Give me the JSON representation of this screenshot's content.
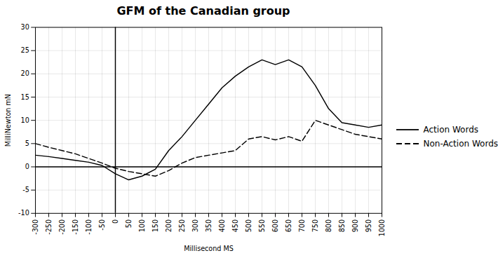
{
  "chart_data": {
    "type": "line",
    "title": "GFM of the Canadian group",
    "xlabel": "Millisecond MS",
    "ylabel": "MilliNewton mN",
    "x": [
      -300,
      -250,
      -200,
      -150,
      -100,
      -50,
      0,
      50,
      100,
      150,
      200,
      250,
      300,
      350,
      400,
      450,
      500,
      550,
      600,
      650,
      700,
      750,
      800,
      850,
      900,
      950,
      1000
    ],
    "series": [
      {
        "name": "Action Words",
        "color": "#000000",
        "line_style": "solid",
        "values": [
          2.5,
          2.2,
          1.8,
          1.4,
          1.0,
          0.3,
          -1.5,
          -2.8,
          -2.0,
          -0.5,
          3.5,
          6.5,
          10.0,
          13.5,
          17.0,
          19.5,
          21.5,
          23.0,
          22.0,
          23.0,
          21.5,
          17.5,
          12.5,
          9.5,
          9.0,
          8.5,
          9.0
        ]
      },
      {
        "name": "Non-Action Words",
        "color": "#000000",
        "line_style": "dashed",
        "values": [
          5.0,
          4.2,
          3.5,
          2.8,
          1.8,
          0.8,
          -0.3,
          -1.0,
          -1.5,
          -2.0,
          -0.8,
          0.8,
          2.0,
          2.5,
          3.0,
          3.5,
          6.0,
          6.5,
          5.8,
          6.5,
          5.5,
          10.0,
          9.0,
          8.0,
          7.0,
          6.5,
          6.0
        ]
      }
    ],
    "xlim": [
      -300,
      1000
    ],
    "ylim": [
      -10,
      30
    ],
    "xticks": [
      -300,
      -250,
      -200,
      -150,
      -100,
      -50,
      0,
      50,
      100,
      150,
      200,
      250,
      300,
      350,
      400,
      450,
      500,
      550,
      600,
      650,
      700,
      750,
      800,
      850,
      900,
      950,
      1000
    ],
    "yticks": [
      -10,
      -5,
      0,
      5,
      10,
      15,
      20,
      25,
      30
    ],
    "vlines": [
      0
    ],
    "hlines": [
      0
    ],
    "grid": true,
    "legend": "right"
  }
}
